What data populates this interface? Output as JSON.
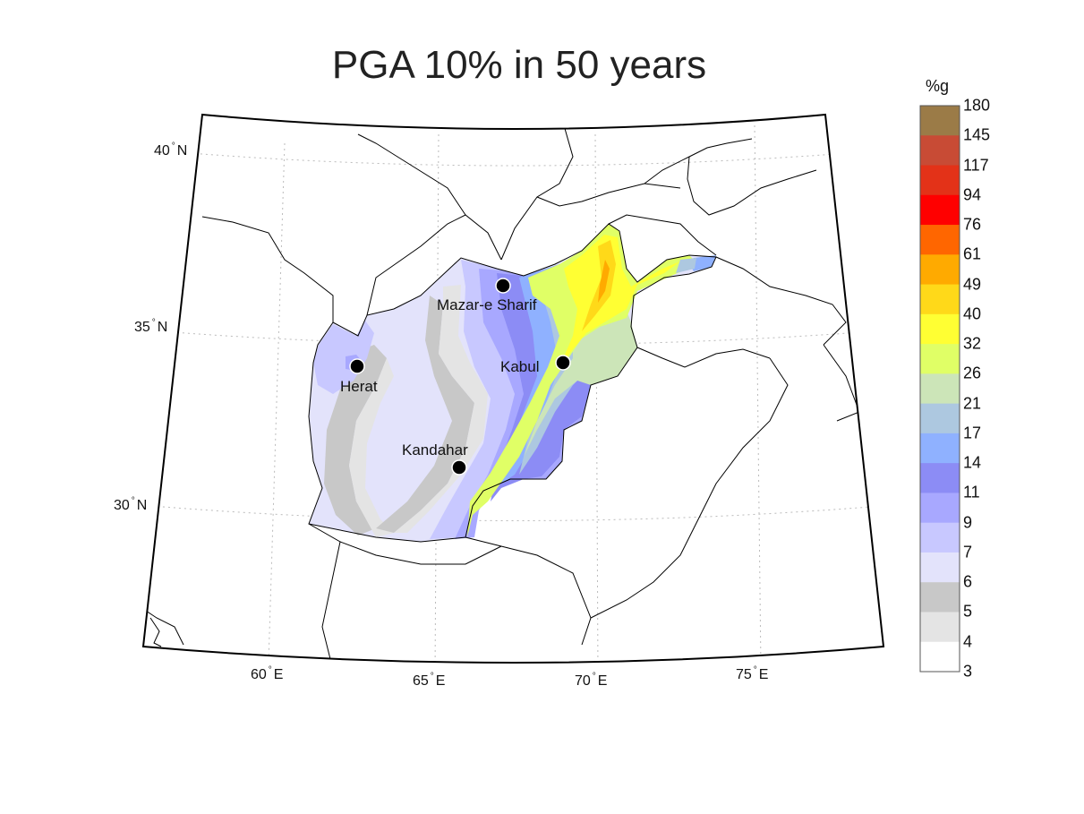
{
  "title": "PGA 10% in 50 years",
  "lat_labels": [
    {
      "deg": "40",
      "hemi": "N"
    },
    {
      "deg": "35",
      "hemi": "N"
    },
    {
      "deg": "30",
      "hemi": "N"
    }
  ],
  "lon_labels": [
    {
      "deg": "60",
      "hemi": "E"
    },
    {
      "deg": "65",
      "hemi": "E"
    },
    {
      "deg": "70",
      "hemi": "E"
    },
    {
      "deg": "75",
      "hemi": "E"
    }
  ],
  "cities": [
    {
      "name": "Mazar-e Sharif"
    },
    {
      "name": "Kabul"
    },
    {
      "name": "Herat"
    },
    {
      "name": "Kandahar"
    }
  ],
  "colorbar": {
    "unit": "%g",
    "ticks": [
      "180",
      "145",
      "117",
      "94",
      "76",
      "61",
      "49",
      "40",
      "32",
      "26",
      "21",
      "17",
      "14",
      "11",
      "9",
      "7",
      "6",
      "5",
      "4",
      "3"
    ],
    "colors": [
      "#9b7b47",
      "#c84b35",
      "#e33218",
      "#ff0000",
      "#ff6600",
      "#ffaa00",
      "#ffd919",
      "#ffff33",
      "#e0ff66",
      "#cce5b8",
      "#adc8e0",
      "#8fb1ff",
      "#8c8cf5",
      "#a8a8ff",
      "#c8c8ff",
      "#e3e3fb",
      "#c8c8c8",
      "#e4e4e4",
      "#ffffff"
    ]
  }
}
